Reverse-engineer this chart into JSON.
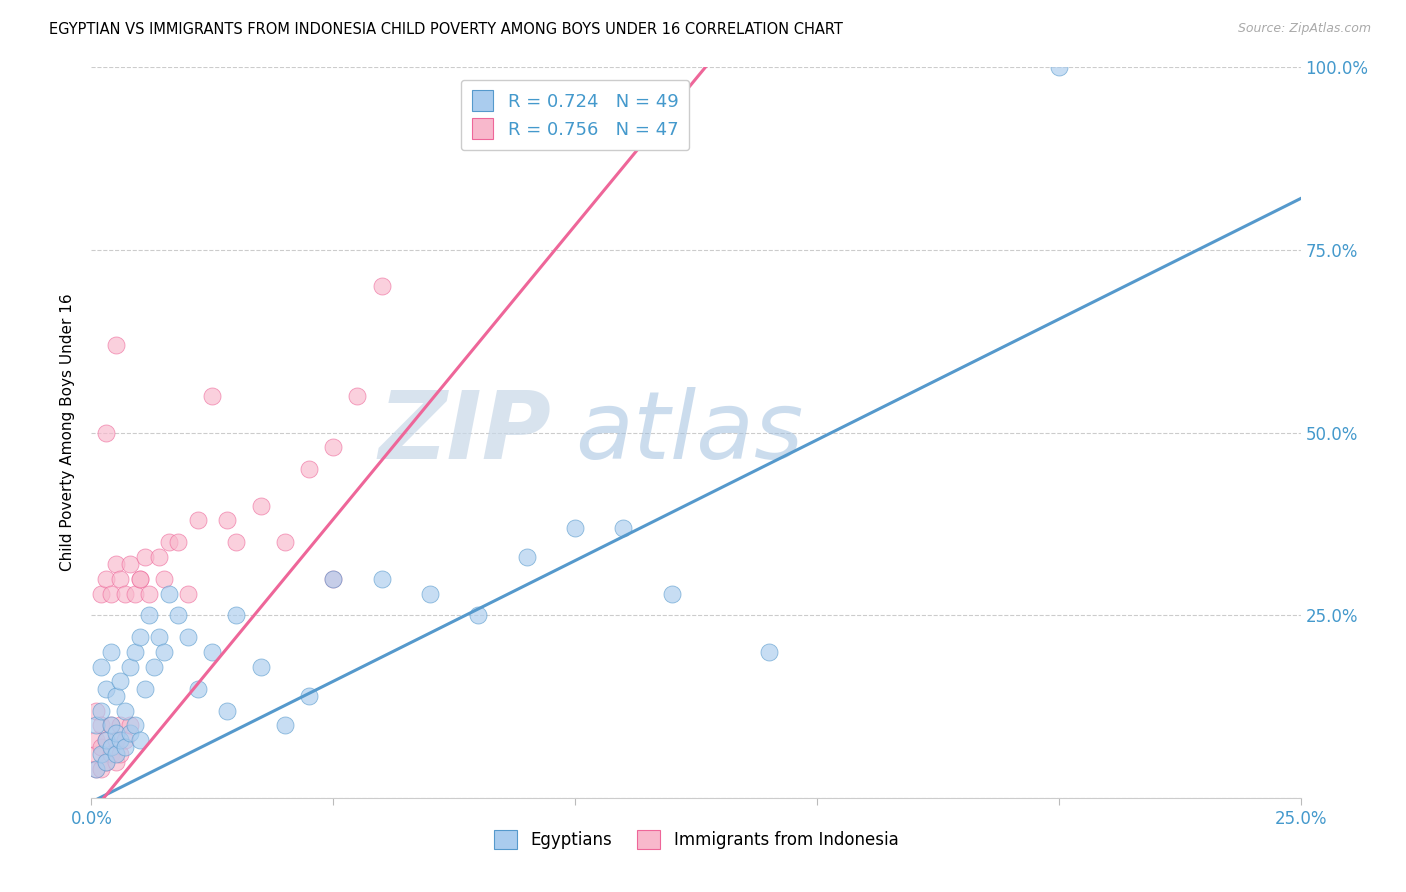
{
  "title": "EGYPTIAN VS IMMIGRANTS FROM INDONESIA CHILD POVERTY AMONG BOYS UNDER 16 CORRELATION CHART",
  "source": "Source: ZipAtlas.com",
  "ylabel_label": "Child Poverty Among Boys Under 16",
  "x_min": 0.0,
  "x_max": 0.25,
  "y_min": 0.0,
  "y_max": 1.0,
  "x_ticks": [
    0.0,
    0.05,
    0.1,
    0.15,
    0.2,
    0.25
  ],
  "x_tick_labels": [
    "0.0%",
    "",
    "",
    "",
    "",
    "25.0%"
  ],
  "y_ticks": [
    0.0,
    0.25,
    0.5,
    0.75,
    1.0
  ],
  "y_tick_labels": [
    "",
    "25.0%",
    "50.0%",
    "75.0%",
    "100.0%"
  ],
  "color_blue": "#aaccee",
  "color_pink": "#f8b8cc",
  "edge_blue": "#5599cc",
  "edge_pink": "#ee6699",
  "legend_r1": "R = 0.724",
  "legend_n1": "N = 49",
  "legend_r2": "R = 0.756",
  "legend_n2": "N = 47",
  "blue_line_x": [
    0.0,
    0.25
  ],
  "blue_line_y": [
    -0.005,
    0.82
  ],
  "pink_line_x": [
    0.0,
    0.127
  ],
  "pink_line_y": [
    -0.02,
    1.0
  ],
  "blue_x": [
    0.001,
    0.001,
    0.002,
    0.002,
    0.002,
    0.003,
    0.003,
    0.003,
    0.004,
    0.004,
    0.004,
    0.005,
    0.005,
    0.005,
    0.006,
    0.006,
    0.007,
    0.007,
    0.008,
    0.008,
    0.009,
    0.009,
    0.01,
    0.01,
    0.011,
    0.012,
    0.013,
    0.014,
    0.015,
    0.016,
    0.018,
    0.02,
    0.022,
    0.025,
    0.028,
    0.03,
    0.035,
    0.04,
    0.045,
    0.05,
    0.06,
    0.07,
    0.08,
    0.09,
    0.1,
    0.11,
    0.12,
    0.14,
    0.2
  ],
  "blue_y": [
    0.04,
    0.1,
    0.06,
    0.12,
    0.18,
    0.05,
    0.08,
    0.15,
    0.07,
    0.1,
    0.2,
    0.06,
    0.09,
    0.14,
    0.08,
    0.16,
    0.07,
    0.12,
    0.09,
    0.18,
    0.1,
    0.2,
    0.08,
    0.22,
    0.15,
    0.25,
    0.18,
    0.22,
    0.2,
    0.28,
    0.25,
    0.22,
    0.15,
    0.2,
    0.12,
    0.25,
    0.18,
    0.1,
    0.14,
    0.3,
    0.3,
    0.28,
    0.25,
    0.33,
    0.37,
    0.37,
    0.28,
    0.2,
    1.0
  ],
  "pink_x": [
    0.001,
    0.001,
    0.001,
    0.001,
    0.002,
    0.002,
    0.002,
    0.002,
    0.003,
    0.003,
    0.003,
    0.004,
    0.004,
    0.004,
    0.005,
    0.005,
    0.005,
    0.006,
    0.006,
    0.006,
    0.007,
    0.007,
    0.008,
    0.008,
    0.009,
    0.01,
    0.011,
    0.012,
    0.014,
    0.015,
    0.016,
    0.018,
    0.02,
    0.022,
    0.025,
    0.028,
    0.03,
    0.035,
    0.04,
    0.045,
    0.05,
    0.055,
    0.06,
    0.003,
    0.005,
    0.01,
    0.05
  ],
  "pink_y": [
    0.04,
    0.06,
    0.08,
    0.12,
    0.04,
    0.07,
    0.1,
    0.28,
    0.05,
    0.08,
    0.3,
    0.06,
    0.1,
    0.28,
    0.05,
    0.08,
    0.32,
    0.06,
    0.1,
    0.3,
    0.08,
    0.28,
    0.1,
    0.32,
    0.28,
    0.3,
    0.33,
    0.28,
    0.33,
    0.3,
    0.35,
    0.35,
    0.28,
    0.38,
    0.55,
    0.38,
    0.35,
    0.4,
    0.35,
    0.45,
    0.48,
    0.55,
    0.7,
    0.5,
    0.62,
    0.3,
    0.3
  ]
}
